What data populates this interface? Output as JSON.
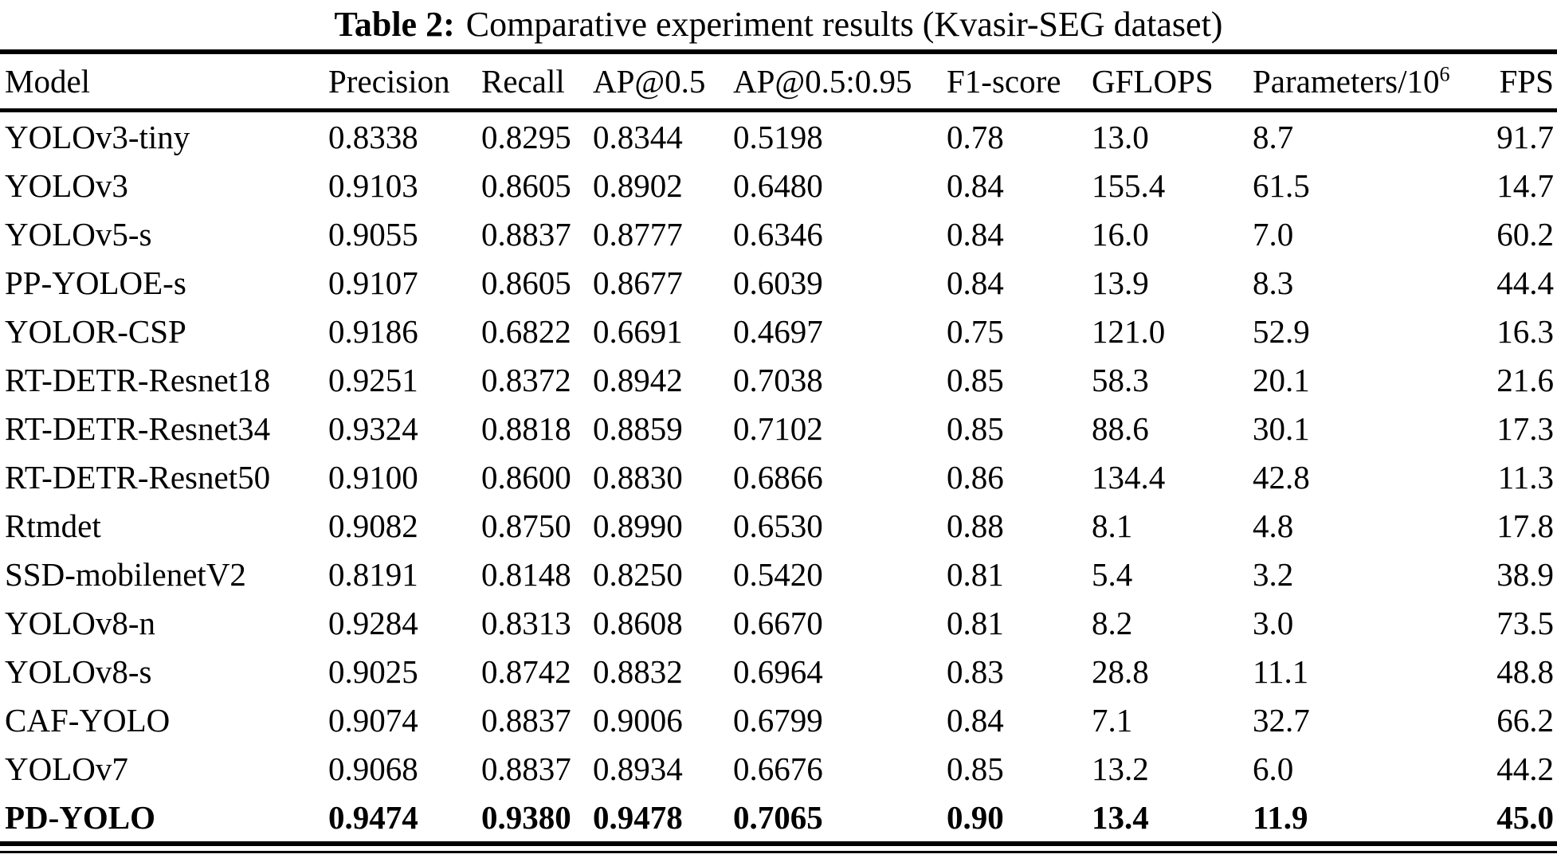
{
  "caption": {
    "label": "Table 2:",
    "text": "Comparative experiment results (Kvasir-SEG dataset)"
  },
  "colors": {
    "text": "#000000",
    "background": "#ffffff",
    "rule": "#000000"
  },
  "table": {
    "columns": [
      {
        "label": "Model"
      },
      {
        "label": "Precision"
      },
      {
        "label": "Recall"
      },
      {
        "label": "AP@0.5"
      },
      {
        "label": "AP@0.5:0.95"
      },
      {
        "label": "F1-score"
      },
      {
        "label": "GFLOPS"
      },
      {
        "label": "Parameters/10",
        "sup": "6"
      },
      {
        "label": "FPS"
      }
    ],
    "rows": [
      {
        "model": "YOLOv3-tiny",
        "values": [
          "0.8338",
          "0.8295",
          "0.8344",
          "0.5198",
          "0.78",
          "13.0",
          "8.7",
          "91.7"
        ],
        "bold": false
      },
      {
        "model": "YOLOv3",
        "values": [
          "0.9103",
          "0.8605",
          "0.8902",
          "0.6480",
          "0.84",
          "155.4",
          "61.5",
          "14.7"
        ],
        "bold": false
      },
      {
        "model": "YOLOv5-s",
        "values": [
          "0.9055",
          "0.8837",
          "0.8777",
          "0.6346",
          "0.84",
          "16.0",
          "7.0",
          "60.2"
        ],
        "bold": false
      },
      {
        "model": "PP-YOLOE-s",
        "values": [
          "0.9107",
          "0.8605",
          "0.8677",
          "0.6039",
          "0.84",
          "13.9",
          "8.3",
          "44.4"
        ],
        "bold": false
      },
      {
        "model": "YOLOR-CSP",
        "values": [
          "0.9186",
          "0.6822",
          "0.6691",
          "0.4697",
          "0.75",
          "121.0",
          "52.9",
          "16.3"
        ],
        "bold": false
      },
      {
        "model": "RT-DETR-Resnet18",
        "values": [
          "0.9251",
          "0.8372",
          "0.8942",
          "0.7038",
          "0.85",
          "58.3",
          "20.1",
          "21.6"
        ],
        "bold": false
      },
      {
        "model": "RT-DETR-Resnet34",
        "values": [
          "0.9324",
          "0.8818",
          "0.8859",
          "0.7102",
          "0.85",
          "88.6",
          "30.1",
          "17.3"
        ],
        "bold": false
      },
      {
        "model": "RT-DETR-Resnet50",
        "values": [
          "0.9100",
          "0.8600",
          "0.8830",
          "0.6866",
          "0.86",
          "134.4",
          "42.8",
          "11.3"
        ],
        "bold": false
      },
      {
        "model": "Rtmdet",
        "values": [
          "0.9082",
          "0.8750",
          "0.8990",
          "0.6530",
          "0.88",
          "8.1",
          "4.8",
          "17.8"
        ],
        "bold": false
      },
      {
        "model": "SSD-mobilenetV2",
        "values": [
          "0.8191",
          "0.8148",
          "0.8250",
          "0.5420",
          "0.81",
          "5.4",
          "3.2",
          "38.9"
        ],
        "bold": false
      },
      {
        "model": "YOLOv8-n",
        "values": [
          "0.9284",
          "0.8313",
          "0.8608",
          "0.6670",
          "0.81",
          "8.2",
          "3.0",
          "73.5"
        ],
        "bold": false
      },
      {
        "model": "YOLOv8-s",
        "values": [
          "0.9025",
          "0.8742",
          "0.8832",
          "0.6964",
          "0.83",
          "28.8",
          "11.1",
          "48.8"
        ],
        "bold": false
      },
      {
        "model": "CAF-YOLO",
        "values": [
          "0.9074",
          "0.8837",
          "0.9006",
          "0.6799",
          "0.84",
          "7.1",
          "32.7",
          "66.2"
        ],
        "bold": false
      },
      {
        "model": "YOLOv7",
        "values": [
          "0.9068",
          "0.8837",
          "0.8934",
          "0.6676",
          "0.85",
          "13.2",
          "6.0",
          "44.2"
        ],
        "bold": false
      },
      {
        "model": "PD-YOLO",
        "values": [
          "0.9474",
          "0.9380",
          "0.9478",
          "0.7065",
          "0.90",
          "13.4",
          "11.9",
          "45.0"
        ],
        "bold": true
      }
    ]
  }
}
